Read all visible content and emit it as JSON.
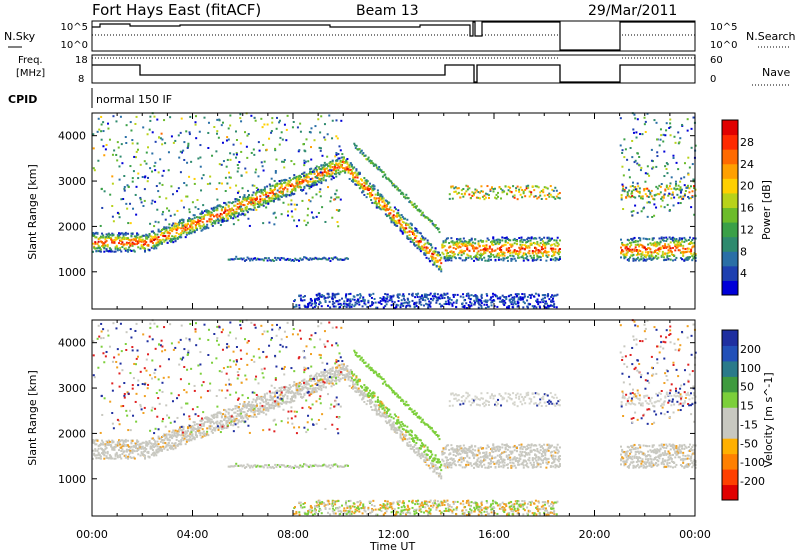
{
  "header": {
    "title": "Fort Hays East (fitACF)",
    "beam": "Beam 13",
    "date": "29/Mar/2011"
  },
  "top_panels": {
    "nsky_label": "N.Sky",
    "nsky_ticks": [
      "10^5",
      "10^0"
    ],
    "nsearch_label": "N.Search",
    "nsearch_ticks": [
      "10^5",
      "10^0"
    ],
    "freq_label_1": "Freq.",
    "freq_label_2": "[MHz]",
    "freq_ticks": [
      "18",
      "8"
    ],
    "nave_label": "Nave",
    "nave_ticks": [
      "60",
      "0"
    ],
    "cpid_label": "CPID",
    "cpid_value": "normal 150 IF"
  },
  "chart_data": [
    {
      "type": "heatmap",
      "name": "power",
      "ylabel": "Slant Range [km]",
      "xlabel": "",
      "x_ticks": [
        "00:00",
        "04:00",
        "08:00",
        "12:00",
        "16:00",
        "20:00",
        "00:00"
      ],
      "y_ticks": [
        1000,
        2000,
        3000,
        4000
      ],
      "x_range_hours": [
        0,
        24
      ],
      "y_range_km": [
        180,
        4500
      ],
      "colorbar": {
        "label": "Power [dB]",
        "ticks": [
          "4",
          "8",
          "12",
          "16",
          "20",
          "24",
          "28"
        ],
        "colors": [
          "#0000d8",
          "#1e40b0",
          "#2a6fa6",
          "#2e8a6e",
          "#3aa048",
          "#6cbc2a",
          "#b8d21a",
          "#ffd000",
          "#ffa000",
          "#ff6a00",
          "#ff2a00",
          "#e00000"
        ]
      },
      "data_gaps_hours": [
        [
          18.6,
          21.0
        ]
      ]
    },
    {
      "type": "heatmap",
      "name": "velocity",
      "ylabel": "Slant Range [km]",
      "xlabel": "Time UT",
      "x_ticks": [
        "00:00",
        "04:00",
        "08:00",
        "12:00",
        "16:00",
        "20:00",
        "00:00"
      ],
      "y_ticks": [
        1000,
        2000,
        3000,
        4000
      ],
      "x_range_hours": [
        0,
        24
      ],
      "y_range_km": [
        180,
        4500
      ],
      "colorbar": {
        "label": "Velocity [m s^-1]",
        "ticks": [
          "200",
          "100",
          "50",
          "15",
          "-15",
          "-50",
          "-100",
          "-200"
        ],
        "colors": [
          "#1f2fa0",
          "#2250b8",
          "#2a7a8a",
          "#3f9a3f",
          "#7ccf3a",
          "#c8c8c0",
          "#c8c8c0",
          "#ffb000",
          "#ff8000",
          "#ff4000",
          "#e00000"
        ]
      },
      "data_gaps_hours": [
        [
          18.6,
          21.0
        ]
      ]
    }
  ]
}
